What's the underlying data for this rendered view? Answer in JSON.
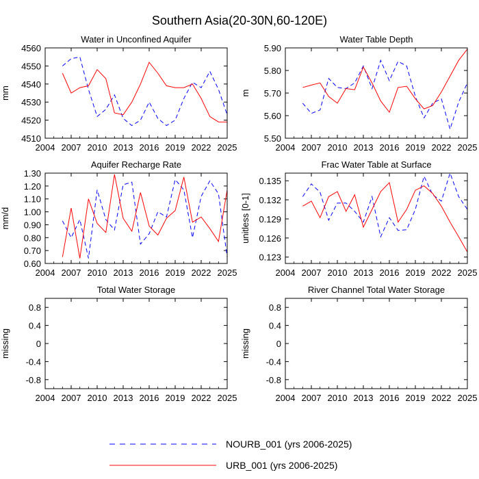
{
  "title": "Southern Asia(20-30N,60-120E)",
  "legend": [
    {
      "label": "NOURB_001 (yrs 2006-2025)",
      "color": "#0000ff",
      "dash": "dashed"
    },
    {
      "label": "URB_001 (yrs 2006-2025)",
      "color": "#ff0000",
      "dash": "solid"
    }
  ],
  "colors": {
    "nourb": "#0000ff",
    "urb": "#ff0000"
  },
  "chart_data": [
    {
      "type": "line",
      "title": "Water in Unconfined Aquifer",
      "ylabel": "mm",
      "xlim": [
        2004,
        2025
      ],
      "xticks": [
        2004,
        2007,
        2010,
        2013,
        2016,
        2019,
        2022,
        2025
      ],
      "ylim": [
        4510,
        4560
      ],
      "yticks": [
        4510,
        4520,
        4530,
        4540,
        4550,
        4560
      ],
      "ytick_labels": [
        "4510",
        "4520",
        "4530",
        "4540",
        "4550",
        "4560"
      ],
      "x": [
        2006,
        2007,
        2008,
        2009,
        2010,
        2011,
        2012,
        2013,
        2014,
        2015,
        2016,
        2017,
        2018,
        2019,
        2020,
        2021,
        2022,
        2023,
        2024,
        2025
      ],
      "series": [
        {
          "name": "NOURB_001 (yrs 2006-2025)",
          "values": [
            4550,
            4554,
            4555,
            4537,
            4522,
            4526,
            4534,
            4521,
            4517,
            4520,
            4530,
            4521,
            4517,
            4520,
            4532,
            4541,
            4538,
            4547,
            4537,
            4523
          ]
        },
        {
          "name": "URB_001 (yrs 2006-2025)",
          "values": [
            4546,
            4535,
            4538,
            4539,
            4548,
            4543,
            4524,
            4523,
            4530,
            4540,
            4552,
            4546,
            4539,
            4538,
            4538,
            4540,
            4532,
            4522,
            4519,
            4519
          ]
        }
      ]
    },
    {
      "type": "line",
      "title": "Water Table Depth",
      "ylabel": "m",
      "xlim": [
        2004,
        2025
      ],
      "xticks": [
        2004,
        2007,
        2010,
        2013,
        2016,
        2019,
        2022,
        2025
      ],
      "ylim": [
        5.5,
        5.9
      ],
      "yticks": [
        5.5,
        5.6,
        5.7,
        5.8,
        5.9
      ],
      "ytick_labels": [
        "5.50",
        "5.60",
        "5.70",
        "5.80",
        "5.90"
      ],
      "x": [
        2006,
        2007,
        2008,
        2009,
        2010,
        2011,
        2012,
        2013,
        2014,
        2015,
        2016,
        2017,
        2018,
        2019,
        2020,
        2021,
        2022,
        2023,
        2024,
        2025
      ],
      "series": [
        {
          "name": "NOURB_001 (yrs 2006-2025)",
          "values": [
            5.655,
            5.61,
            5.625,
            5.765,
            5.725,
            5.72,
            5.745,
            5.82,
            5.72,
            5.845,
            5.755,
            5.84,
            5.82,
            5.685,
            5.59,
            5.655,
            5.675,
            5.54,
            5.66,
            5.745
          ]
        },
        {
          "name": "URB_001 (yrs 2006-2025)",
          "values": [
            5.725,
            5.735,
            5.745,
            5.685,
            5.655,
            5.72,
            5.715,
            5.815,
            5.745,
            5.665,
            5.615,
            5.725,
            5.73,
            5.675,
            5.63,
            5.645,
            5.705,
            5.775,
            5.845,
            5.895
          ]
        }
      ]
    },
    {
      "type": "line",
      "title": "Aquifer Recharge Rate",
      "ylabel": "mm/d",
      "xlim": [
        2004,
        2025
      ],
      "xticks": [
        2004,
        2007,
        2010,
        2013,
        2016,
        2019,
        2022,
        2025
      ],
      "ylim": [
        0.6,
        1.3
      ],
      "yticks": [
        0.6,
        0.7,
        0.8,
        0.9,
        1.0,
        1.1,
        1.2,
        1.3
      ],
      "ytick_labels": [
        "0.60",
        "0.70",
        "0.80",
        "0.90",
        "1.00",
        "1.10",
        "1.20",
        "1.30"
      ],
      "x": [
        2006,
        2007,
        2008,
        2009,
        2010,
        2011,
        2012,
        2013,
        2014,
        2015,
        2016,
        2017,
        2018,
        2019,
        2020,
        2021,
        2022,
        2023,
        2024,
        2025
      ],
      "series": [
        {
          "name": "NOURB_001 (yrs 2006-2025)",
          "values": [
            0.93,
            0.8,
            0.94,
            0.64,
            1.17,
            0.94,
            0.86,
            1.21,
            1.23,
            0.75,
            0.83,
            1.0,
            0.96,
            1.25,
            1.17,
            0.8,
            1.12,
            1.24,
            1.14,
            0.65
          ]
        },
        {
          "name": "URB_001 (yrs 2006-2025)",
          "values": [
            0.65,
            1.03,
            0.64,
            1.1,
            0.91,
            0.84,
            1.29,
            0.95,
            0.85,
            1.15,
            0.89,
            0.82,
            0.95,
            1.01,
            1.27,
            0.92,
            0.96,
            0.87,
            0.77,
            1.17
          ]
        }
      ]
    },
    {
      "type": "line",
      "title": "Frac Water Table at Surface",
      "ylabel": "unitless [0-1]",
      "xlim": [
        2004,
        2025
      ],
      "xticks": [
        2004,
        2007,
        2010,
        2013,
        2016,
        2019,
        2022,
        2025
      ],
      "ylim": [
        0.122,
        0.1362
      ],
      "yticks": [
        0.123,
        0.126,
        0.129,
        0.132,
        0.135
      ],
      "ytick_labels": [
        "0.123",
        "0.126",
        "0.129",
        "0.132",
        "0.135"
      ],
      "x": [
        2006,
        2007,
        2008,
        2009,
        2010,
        2011,
        2012,
        2013,
        2014,
        2015,
        2016,
        2017,
        2018,
        2019,
        2020,
        2021,
        2022,
        2023,
        2024,
        2025
      ],
      "series": [
        {
          "name": "NOURB_001 (yrs 2006-2025)",
          "values": [
            0.1325,
            0.1345,
            0.1332,
            0.1288,
            0.1315,
            0.1315,
            0.1302,
            0.1285,
            0.1325,
            0.1262,
            0.1292,
            0.1272,
            0.1273,
            0.1305,
            0.1357,
            0.1328,
            0.1318,
            0.1362,
            0.1325,
            0.1305
          ]
        },
        {
          "name": "URB_001 (yrs 2006-2025)",
          "values": [
            0.131,
            0.1318,
            0.1292,
            0.1325,
            0.1333,
            0.1302,
            0.1328,
            0.1277,
            0.1305,
            0.1333,
            0.1347,
            0.1285,
            0.1305,
            0.1335,
            0.1342,
            0.133,
            0.131,
            0.1285,
            0.1262,
            0.1238
          ]
        }
      ]
    },
    {
      "type": "line",
      "title": "Total Water Storage",
      "ylabel": "missing",
      "xlim": [
        2004,
        2025
      ],
      "xticks": [
        2004,
        2007,
        2010,
        2013,
        2016,
        2019,
        2022,
        2025
      ],
      "ylim": [
        -1.0,
        1.0
      ],
      "yticks": [
        -0.8,
        -0.4,
        0.0,
        0.4,
        0.8
      ],
      "ytick_labels": [
        "-0.8",
        "-0.4",
        "0",
        "0.4",
        "0.8"
      ],
      "x": [],
      "series": []
    },
    {
      "type": "line",
      "title": "River Channel Total Water Storage",
      "ylabel": "missing",
      "xlim": [
        2004,
        2025
      ],
      "xticks": [
        2004,
        2007,
        2010,
        2013,
        2016,
        2019,
        2022,
        2025
      ],
      "ylim": [
        -1.0,
        1.0
      ],
      "yticks": [
        -0.8,
        -0.4,
        0.0,
        0.4,
        0.8
      ],
      "ytick_labels": [
        "-0.8",
        "-0.4",
        "0",
        "0.4",
        "0.8"
      ],
      "x": [],
      "series": []
    }
  ]
}
